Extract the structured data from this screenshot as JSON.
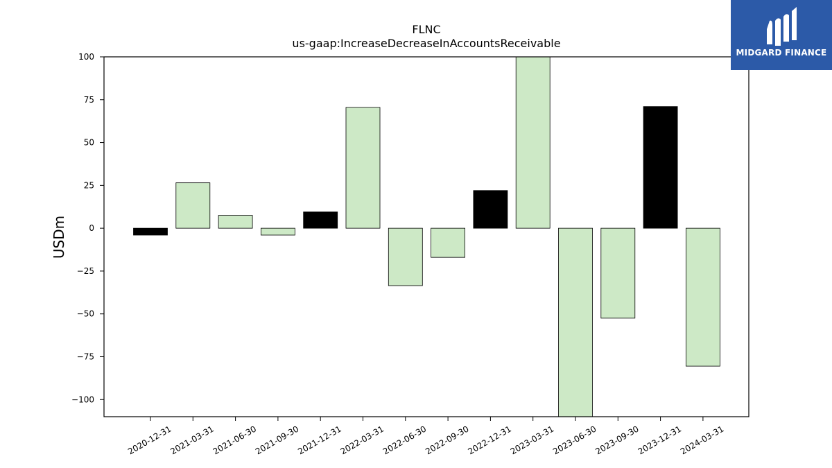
{
  "chart_data": {
    "type": "bar",
    "title": "FLNC",
    "subtitle": "us-gaap:IncreaseDecreaseInAccountsReceivable",
    "xlabel": "",
    "ylabel": "USDm",
    "ylim": [
      -110,
      100
    ],
    "yticks": [
      100,
      75,
      50,
      25,
      0,
      -25,
      -50,
      -75,
      -100
    ],
    "ytick_labels": [
      "100",
      "75",
      "50",
      "25",
      "0",
      "−25",
      "−50",
      "−75",
      "−100"
    ],
    "categories": [
      "2020-12-31",
      "2021-03-31",
      "2021-06-30",
      "2021-09-30",
      "2021-12-31",
      "2022-03-31",
      "2022-06-30",
      "2022-09-30",
      "2022-12-31",
      "2023-03-31",
      "2023-06-30",
      "2023-09-30",
      "2023-12-31",
      "2024-03-31"
    ],
    "values": [
      -4,
      26.5,
      7.5,
      -4,
      9.5,
      70.5,
      -33.5,
      -17,
      22,
      100,
      -110,
      -52.5,
      71,
      -80.5
    ],
    "bar_colors": [
      "#000000",
      "#cde9c6",
      "#cde9c6",
      "#cde9c6",
      "#000000",
      "#cde9c6",
      "#cde9c6",
      "#cde9c6",
      "#000000",
      "#cde9c6",
      "#cde9c6",
      "#cde9c6",
      "#000000",
      "#cde9c6"
    ],
    "grid": false,
    "legend": "none"
  },
  "logo": {
    "text": "MIDGARD FINANCE",
    "color": "#2c5aa8"
  }
}
